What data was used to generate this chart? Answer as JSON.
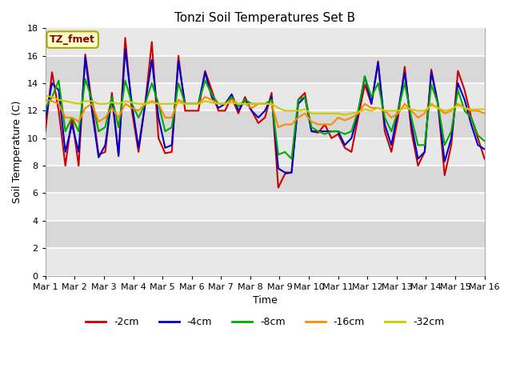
{
  "title": "Tonzi Soil Temperatures Set B",
  "xlabel": "Time",
  "ylabel": "Soil Temperature (C)",
  "annotation": "TZ_fmet",
  "ylim": [
    0,
    18
  ],
  "yticks": [
    0,
    2,
    4,
    6,
    8,
    10,
    12,
    14,
    16,
    18
  ],
  "xlim": [
    0,
    15
  ],
  "xtick_labels": [
    "Mar 1",
    "Mar 2",
    "Mar 3",
    "Mar 4",
    "Mar 5",
    "Mar 6",
    "Mar 7",
    "Mar 8",
    "Mar 9",
    "Mar 10",
    "Mar 11",
    "Mar 12",
    "Mar 13",
    "Mar 14",
    "Mar 15",
    "Mar 16"
  ],
  "colors": {
    "-2cm": "#cc0000",
    "-4cm": "#0000cc",
    "-8cm": "#00aa00",
    "-16cm": "#ff8800",
    "-32cm": "#cccc00"
  },
  "line_width": 1.5,
  "legend_labels": [
    "-2cm",
    "-4cm",
    "-8cm",
    "-16cm",
    "-32cm"
  ],
  "band_colors": [
    "#e8e8e8",
    "#d8d8d8"
  ],
  "data": {
    "-2cm": [
      10.5,
      14.8,
      12.0,
      8.0,
      11.5,
      8.0,
      16.1,
      12.5,
      8.8,
      9.0,
      13.3,
      8.8,
      17.3,
      12.0,
      9.0,
      12.5,
      17.0,
      10.0,
      8.9,
      9.0,
      16.0,
      12.0,
      12.0,
      12.0,
      14.9,
      13.5,
      12.0,
      12.0,
      13.0,
      11.8,
      13.0,
      12.0,
      11.1,
      11.5,
      13.3,
      6.4,
      7.4,
      7.5,
      12.8,
      13.3,
      10.5,
      10.4,
      11.0,
      10.0,
      10.3,
      9.3,
      9.0,
      11.5,
      13.9,
      12.5,
      15.6,
      10.5,
      9.0,
      11.5,
      15.2,
      10.5,
      8.0,
      9.0,
      15.0,
      12.5,
      7.3,
      9.5,
      14.9,
      13.5,
      11.5,
      10.0,
      8.5
    ],
    "-4cm": [
      11.4,
      14.0,
      13.5,
      9.0,
      11.0,
      9.0,
      15.9,
      12.0,
      8.6,
      9.5,
      13.0,
      8.7,
      16.5,
      12.5,
      9.3,
      12.5,
      15.7,
      11.5,
      9.3,
      9.5,
      15.6,
      12.5,
      12.5,
      12.5,
      14.8,
      13.0,
      12.2,
      12.5,
      13.2,
      12.0,
      12.8,
      12.0,
      11.5,
      12.0,
      13.0,
      7.8,
      7.5,
      7.5,
      12.5,
      13.0,
      10.5,
      10.5,
      10.5,
      10.5,
      10.5,
      9.5,
      10.0,
      11.8,
      14.5,
      12.5,
      15.5,
      11.0,
      9.5,
      12.0,
      14.8,
      11.0,
      8.5,
      9.0,
      14.8,
      12.5,
      8.3,
      10.0,
      14.0,
      12.8,
      11.0,
      9.5,
      9.2
    ],
    "-8cm": [
      12.2,
      13.0,
      14.2,
      10.5,
      11.5,
      10.5,
      14.3,
      12.8,
      10.5,
      10.8,
      13.0,
      10.8,
      14.2,
      12.5,
      11.5,
      12.5,
      14.0,
      12.5,
      10.5,
      10.8,
      14.0,
      12.5,
      12.5,
      12.5,
      14.2,
      13.2,
      12.5,
      12.5,
      13.0,
      12.3,
      12.8,
      12.5,
      12.5,
      12.5,
      12.8,
      8.8,
      9.0,
      8.5,
      12.8,
      13.0,
      10.8,
      10.5,
      10.3,
      10.5,
      10.5,
      10.3,
      10.5,
      12.0,
      14.5,
      13.0,
      14.0,
      11.5,
      10.5,
      12.0,
      14.0,
      11.5,
      9.5,
      9.5,
      13.9,
      12.5,
      9.5,
      10.5,
      13.5,
      12.0,
      11.5,
      10.2,
      9.8
    ],
    "-16cm": [
      12.8,
      12.7,
      12.5,
      11.5,
      11.5,
      11.2,
      12.2,
      12.5,
      11.2,
      11.5,
      12.2,
      11.5,
      12.5,
      12.2,
      12.0,
      12.5,
      12.7,
      12.5,
      11.5,
      11.5,
      12.8,
      12.5,
      12.5,
      12.5,
      13.0,
      12.8,
      12.5,
      12.5,
      12.8,
      12.5,
      12.5,
      12.2,
      12.5,
      12.5,
      12.5,
      10.8,
      11.0,
      11.0,
      11.5,
      11.8,
      11.2,
      11.0,
      11.0,
      11.0,
      11.5,
      11.3,
      11.5,
      11.8,
      12.5,
      12.2,
      12.2,
      12.0,
      11.5,
      11.8,
      12.5,
      12.0,
      11.5,
      11.8,
      12.5,
      12.2,
      11.8,
      12.0,
      12.5,
      12.2,
      12.0,
      12.0,
      11.8
    ],
    "-32cm": [
      13.1,
      13.0,
      12.8,
      12.7,
      12.6,
      12.5,
      12.7,
      12.7,
      12.5,
      12.5,
      12.6,
      12.5,
      12.7,
      12.6,
      12.5,
      12.5,
      12.6,
      12.5,
      12.5,
      12.5,
      12.6,
      12.5,
      12.5,
      12.5,
      12.7,
      12.6,
      12.5,
      12.5,
      12.6,
      12.5,
      12.5,
      12.5,
      12.5,
      12.5,
      12.5,
      12.2,
      12.0,
      12.0,
      12.0,
      12.1,
      11.8,
      11.8,
      11.8,
      11.8,
      11.8,
      11.7,
      11.8,
      11.9,
      12.1,
      12.0,
      12.2,
      12.0,
      12.0,
      12.0,
      12.2,
      12.1,
      12.0,
      12.0,
      12.4,
      12.2,
      12.0,
      12.1,
      12.4,
      12.2,
      12.1,
      12.1,
      12.1
    ]
  }
}
